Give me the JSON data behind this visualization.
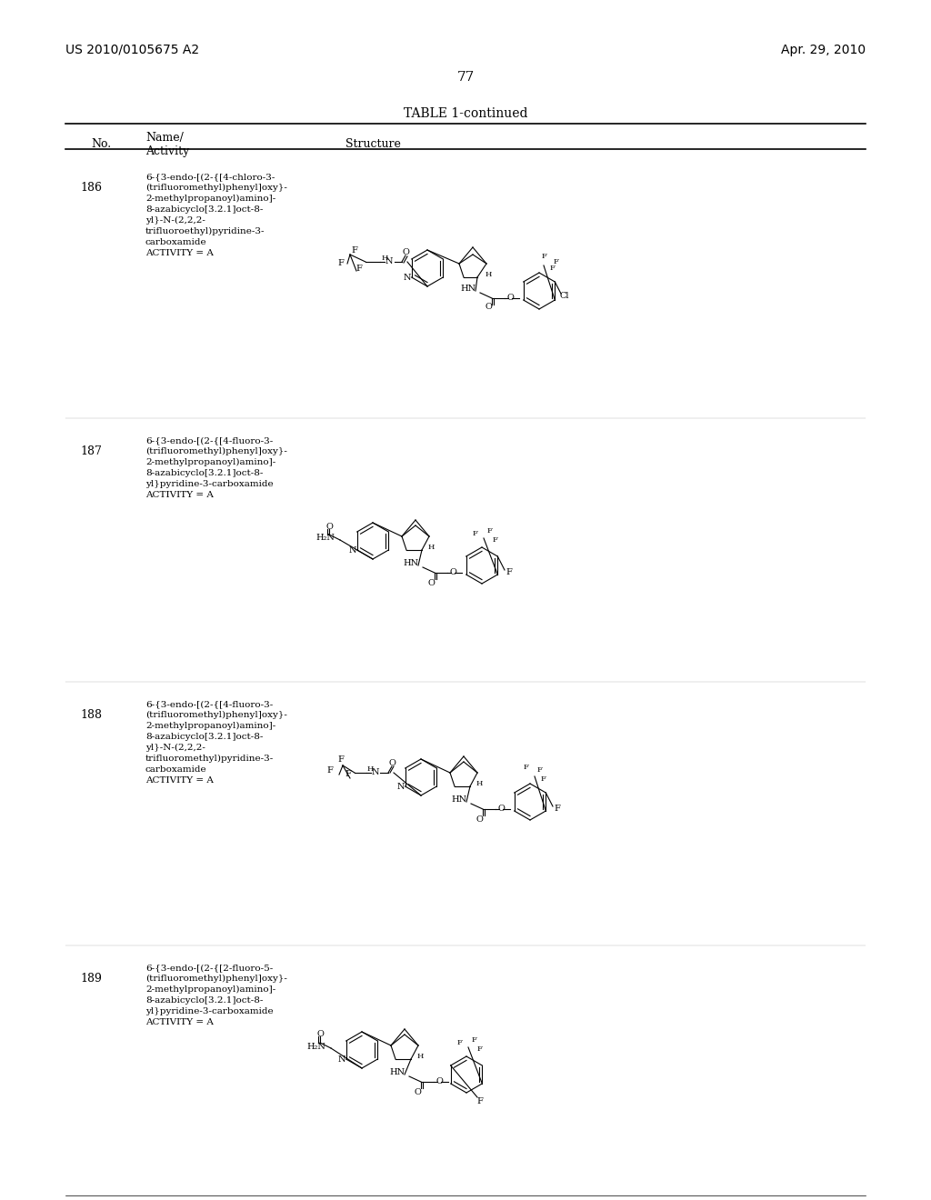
{
  "page_header_left": "US 2010/0105675 A2",
  "page_header_right": "Apr. 29, 2010",
  "page_number": "77",
  "table_title": "TABLE 1-continued",
  "col1_header": "No.",
  "col2_header": "Name/\nActivity",
  "col3_header": "Structure",
  "background_color": "#ffffff",
  "text_color": "#000000",
  "entries": [
    {
      "no": "186",
      "name": "6-{3-endo-[(2-{[4-chloro-3-\n(trifluoromethyl)phenyl]oxy}-\n2-methylpropanoyl)amino]-\n8-azabicyclo[3.2.1]oct-8-\nyl}-N-(2,2,2-\ntrifluoroethyl)pyridine-3-\ncarboxamide\nACTIVITY = A"
    },
    {
      "no": "187",
      "name": "6-{3-endo-[(2-{[4-fluoro-3-\n(trifluoromethyl)phenyl]oxy}-\n2-methylpropanoyl)amino]-\n8-azabicyclo[3.2.1]oct-8-\nyl}pyridine-3-carboxamide\nACTIVITY = A"
    },
    {
      "no": "188",
      "name": "6-{3-endo-[(2-{[4-fluoro-3-\n(trifluoromethyl)phenyl]oxy}-\n2-methylpropanoyl)amino]-\n8-azabicyclo[3.2.1]oct-8-\nyl}-N-(2,2,2-\ntrifluoromethyl)pyridine-3-\ncarboxamide\nACTIVITY = A"
    },
    {
      "no": "189",
      "name": "6-{3-endo-[(2-{[2-fluoro-5-\n(trifluoromethyl)phenyl]oxy}-\n2-methylpropanoyl)amino]-\n8-azabicyclo[3.2.1]oct-8-\nyl}pyridine-3-carboxamide\nACTIVITY = A"
    }
  ]
}
